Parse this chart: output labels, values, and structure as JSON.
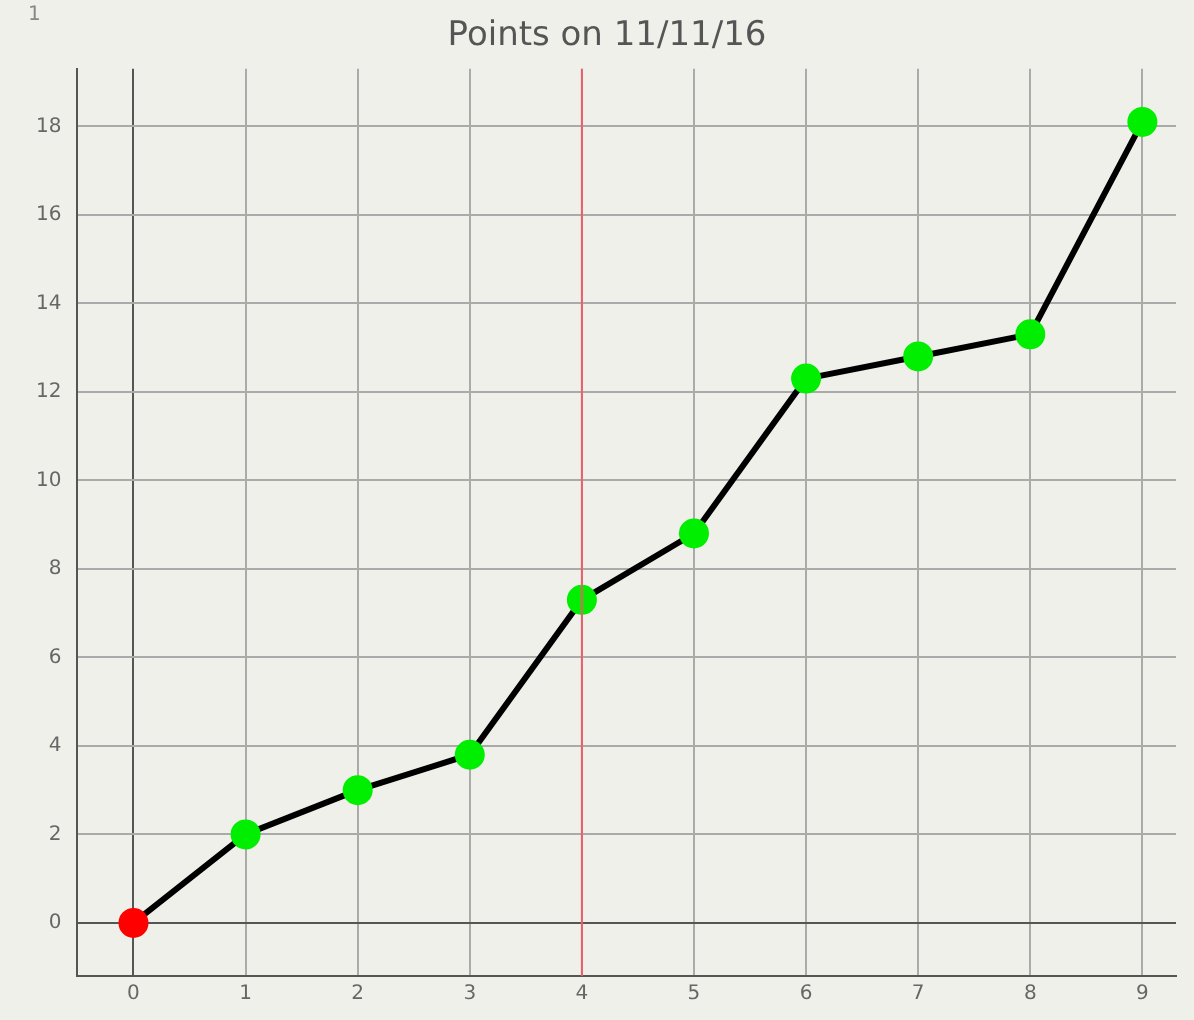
{
  "chart_data": {
    "type": "line",
    "title": "Points on 11/11/16",
    "annotations": [
      "1"
    ],
    "x": [
      0,
      1,
      2,
      3,
      4,
      5,
      6,
      7,
      8,
      9
    ],
    "series": [
      {
        "color": "#000000",
        "colors": [
          "#ff0000",
          "#00ee00",
          "#00ee00",
          "#00ee00",
          "#00ee00",
          "#00ee00",
          "#00ee00",
          "#00ee00",
          "#00ee00",
          "#00ee00"
        ],
        "values": [
          0,
          2,
          3,
          3.8,
          7.3,
          8.8,
          12.3,
          12.8,
          13.3,
          18.1
        ]
      }
    ],
    "xlim": [
      -0.5,
      9.3
    ],
    "xticks": [
      0,
      1,
      2,
      3,
      4,
      5,
      6,
      7,
      8,
      9
    ],
    "ylim": [
      -1.2,
      19.3
    ],
    "yticks": [
      0,
      2,
      4,
      6,
      8,
      10,
      12,
      14,
      16,
      18
    ],
    "ref_lines": [
      {
        "axis": "x",
        "value": 4,
        "color": "#e8606a"
      }
    ],
    "grid": true,
    "legend": false,
    "marker": "circle",
    "line_style": "solid"
  }
}
